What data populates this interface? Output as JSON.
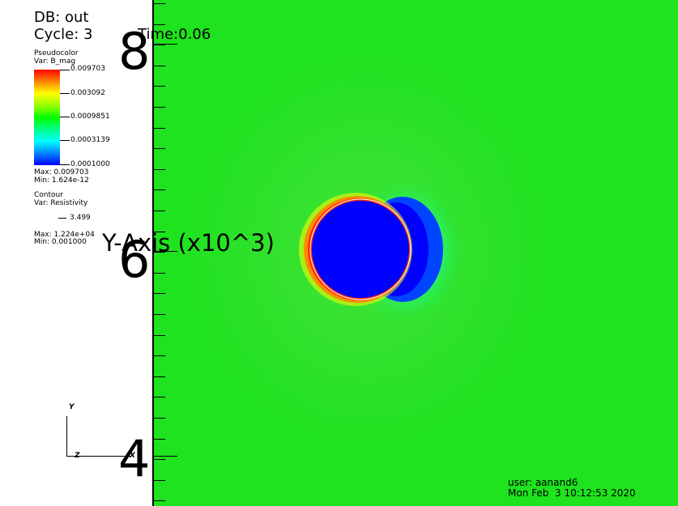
{
  "header": {
    "db": "DB: out",
    "cycle": "Cycle: 3",
    "time": "Time:0.06"
  },
  "legend": {
    "pseudocolor_title": "Pseudocolor",
    "pseudocolor_var": "Var: B_mag",
    "colorbar_labels": [
      "0.009703",
      "0.003092",
      "0.0009851",
      "0.0003139",
      "0.0001000"
    ],
    "max": "Max:  0.009703",
    "min": "Min:  1.624e-12",
    "contour_title": "Contour",
    "contour_var": "Var: Resistivity",
    "contour_level": "3.499",
    "contour_max": "Max:  1.224e+04",
    "contour_min": "Min:  0.001000"
  },
  "axis": {
    "title": "Y-Axis (x10^3)",
    "major_labels": [
      "8",
      "6",
      "4"
    ]
  },
  "triad": {
    "y": "Y",
    "z": "Z",
    "x": "X"
  },
  "footer": {
    "user": "user: aanand6",
    "date": "Mon Feb  3 10:12:53 2020"
  },
  "colors": {
    "field": "#1ee31e",
    "body": "#0000ff",
    "shell": "#ff2a00"
  }
}
